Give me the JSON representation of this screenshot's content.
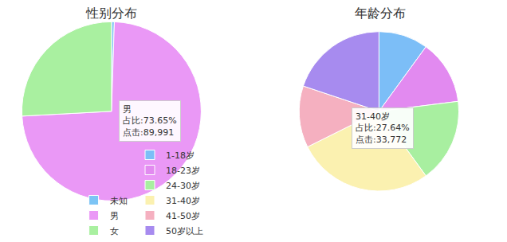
{
  "chart_data": [
    {
      "type": "pie",
      "title": "性别分布",
      "categories": [
        "未知",
        "男",
        "女"
      ],
      "values": [
        0.5,
        73.65,
        25.85
      ],
      "colors": [
        "#7cc4f5",
        "#ea98f6",
        "#a9f0a0"
      ],
      "legend": "bottom",
      "annotations": [
        {
          "text": [
            "男",
            "占比:73.65%",
            "点击:89,991"
          ]
        }
      ]
    },
    {
      "type": "pie",
      "title": "年龄分布",
      "categories": [
        "1-18岁",
        "18-23岁",
        "24-30岁",
        "31-40岁",
        "41-50岁",
        "50岁以上"
      ],
      "values": [
        10,
        13,
        17,
        27.64,
        12.5,
        19.86
      ],
      "colors": [
        "#7cbef7",
        "#e28af0",
        "#a8efa0",
        "#fbf1b0",
        "#f5b0c0",
        "#a78bef"
      ],
      "legend": "bottom",
      "annotations": [
        {
          "text": [
            "31-40岁",
            "占比:27.64%",
            "点击:33,772"
          ]
        }
      ]
    }
  ]
}
